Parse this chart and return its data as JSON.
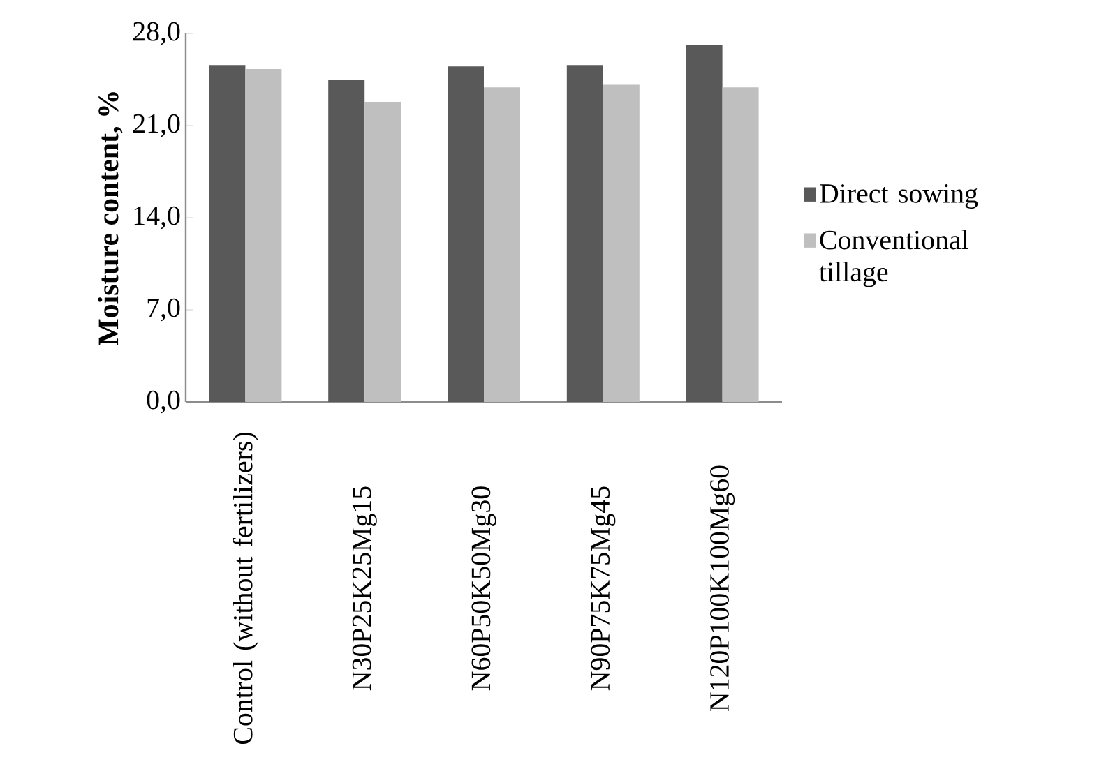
{
  "chart_data": {
    "type": "bar",
    "ylabel": "Moisture content, %",
    "categories": [
      "Control (without fertilizers)",
      "N30P25K25Mg15",
      "N60P50K50Mg30",
      "N90P75K75Mg45",
      "N120P100K100Mg60"
    ],
    "series": [
      {
        "name": "Direct sowing",
        "color": "#595959",
        "values": [
          25.6,
          24.5,
          25.5,
          25.6,
          27.1
        ]
      },
      {
        "name": "Conventional tillage",
        "color": "#bfbfbf",
        "values": [
          25.3,
          22.8,
          23.9,
          24.1,
          23.9
        ]
      }
    ],
    "ylim": [
      0,
      28
    ],
    "yticks": [
      {
        "value": 0,
        "label": "0,0"
      },
      {
        "value": 7,
        "label": "7,0"
      },
      {
        "value": 14,
        "label": "14,0"
      },
      {
        "value": 21,
        "label": "21,0"
      },
      {
        "value": 28,
        "label": "28,0"
      }
    ],
    "legend": "right"
  }
}
